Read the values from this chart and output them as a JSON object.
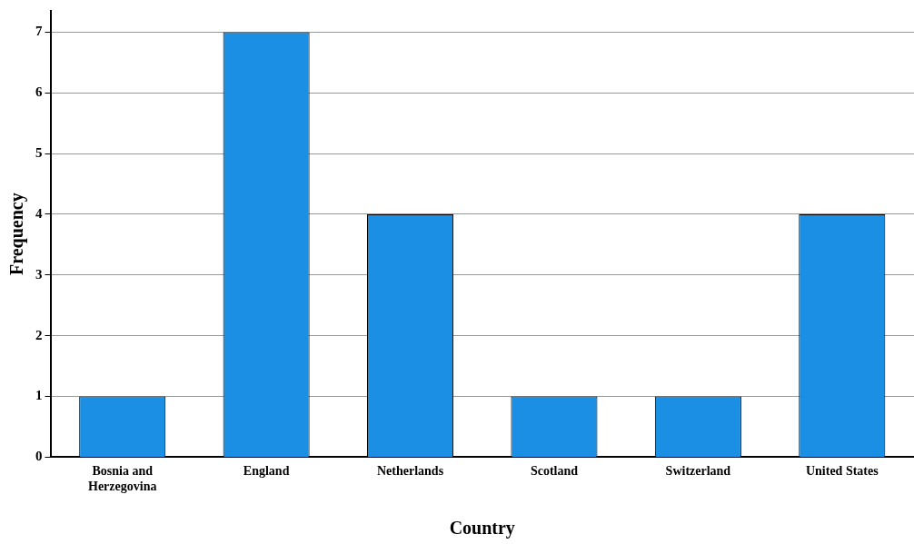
{
  "chart_data": {
    "type": "bar",
    "xlabel": "Country",
    "ylabel": "Frequency",
    "categories": [
      "Bosnia and Herzegovina",
      "England",
      "Netherlands",
      "Scotland",
      "Switzerland",
      "United States"
    ],
    "values": [
      1,
      7,
      4,
      1,
      1,
      4
    ],
    "color": "#1a8fe3",
    "ylim": [
      0,
      7.35
    ],
    "yticks": [
      0,
      1,
      2,
      3,
      4,
      5,
      6,
      7
    ],
    "grid": "y"
  }
}
